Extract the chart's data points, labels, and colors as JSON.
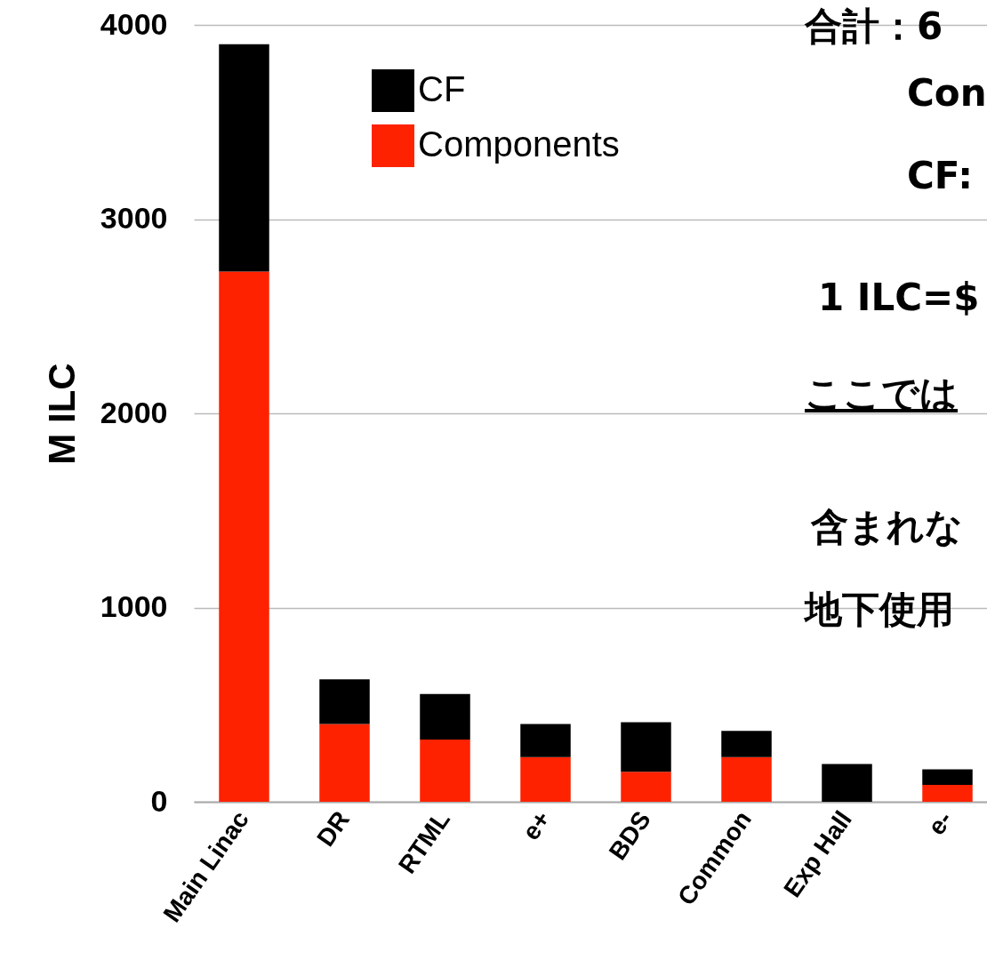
{
  "chart_data": {
    "type": "bar",
    "stacked": true,
    "ylabel": "M ILC",
    "categories": [
      "Main Linac",
      "DR",
      "RTML",
      "e+",
      "BDS",
      "Common",
      "Exp Hall",
      "e-"
    ],
    "series": [
      {
        "name": "Components",
        "color": "#ff2200",
        "values": [
          2730,
          400,
          320,
          230,
          155,
          230,
          0,
          87
        ]
      },
      {
        "name": "CF",
        "color": "#000000",
        "values": [
          1170,
          230,
          235,
          170,
          255,
          135,
          195,
          80
        ]
      }
    ],
    "ylim": [
      0,
      4000
    ],
    "yticks": [
      0,
      1000,
      2000,
      3000,
      4000
    ],
    "grid": "y",
    "legend": "top",
    "annotations": [
      "合計：6",
      "Con",
      "CF:",
      "1 ILC=$",
      "ここでは",
      "含まれな",
      "地下使用"
    ]
  }
}
